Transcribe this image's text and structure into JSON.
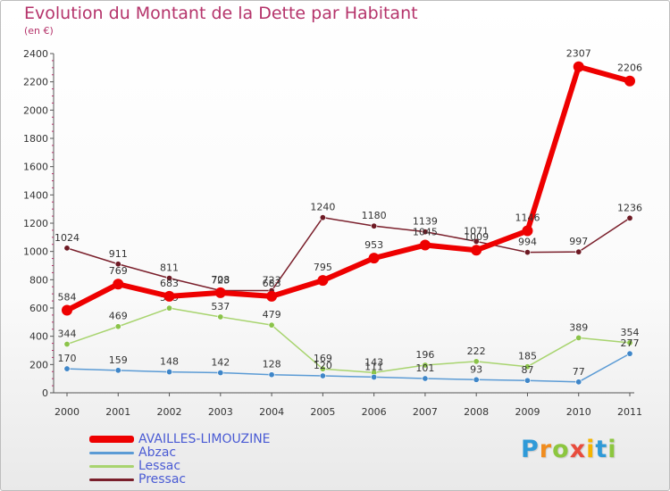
{
  "title": "Evolution du Montant de la Dette par Habitant",
  "subtitle": "(en €)",
  "logo": {
    "text": "Proxiti",
    "letters": [
      {
        "ch": "P",
        "color": "#2f9ad8"
      },
      {
        "ch": "r",
        "color": "#f08c1e"
      },
      {
        "ch": "o",
        "color": "#8cc63f"
      },
      {
        "ch": "x",
        "color": "#e84c3d"
      },
      {
        "ch": "i",
        "color": "#f5b400"
      },
      {
        "ch": "t",
        "color": "#2f9ad8"
      },
      {
        "ch": "i",
        "color": "#8cc63f"
      }
    ]
  },
  "chart_data": {
    "type": "line",
    "x": [
      "2000",
      "2001",
      "2002",
      "2003",
      "2004",
      "2005",
      "2006",
      "2007",
      "2008",
      "2009",
      "2010",
      "2011"
    ],
    "ylim": [
      0,
      2400
    ],
    "yticks": [
      0,
      200,
      400,
      600,
      800,
      1000,
      1200,
      1400,
      1600,
      1800,
      2000,
      2200,
      2400
    ],
    "grid": false,
    "legend_position": "bottom-left",
    "series": [
      {
        "name": "Pressac",
        "color": "#7a1f2b",
        "width": 1.5,
        "marker": "#6e1a24",
        "values": [
          1024,
          911,
          811,
          723,
          723,
          1240,
          1180,
          1139,
          1071,
          994,
          997,
          1236
        ],
        "labels": [
          "1024",
          "911",
          "811",
          "723",
          "723",
          "1240",
          "1180",
          "1139",
          "1071",
          "994",
          "997",
          "1236"
        ]
      },
      {
        "name": "Lessac",
        "color": "#a8d46f",
        "width": 1.5,
        "marker": "#8bc34a",
        "values": [
          344,
          469,
          599,
          537,
          479,
          169,
          143,
          196,
          222,
          185,
          389,
          354
        ],
        "labels": [
          "344",
          "469",
          "599",
          "537",
          "479",
          "169",
          "143",
          "196",
          "222",
          "185",
          "389",
          "354"
        ]
      },
      {
        "name": "Abzac",
        "color": "#5b9bd5",
        "width": 1.5,
        "marker": "#3f86c8",
        "values": [
          170,
          159,
          148,
          142,
          128,
          120,
          111,
          101,
          93,
          87,
          77,
          277
        ],
        "labels": [
          "170",
          "159",
          "148",
          "142",
          "128",
          "120",
          "111",
          "101",
          "93",
          "87",
          "77",
          "277"
        ]
      },
      {
        "name": "AVAILLES-LIMOUZINE",
        "color": "#ee0000",
        "width": 6,
        "marker": "#ee0000",
        "values": [
          584,
          769,
          683,
          708,
          683,
          795,
          953,
          1045,
          1009,
          1146,
          2307,
          2206
        ],
        "labels": [
          "584",
          "769",
          "683",
          "708",
          "683",
          "795",
          "953",
          "1045",
          "1009",
          "1146",
          "2307",
          "2206"
        ]
      }
    ],
    "legend_order": [
      "AVAILLES-LIMOUZINE",
      "Abzac",
      "Lessac",
      "Pressac"
    ]
  }
}
